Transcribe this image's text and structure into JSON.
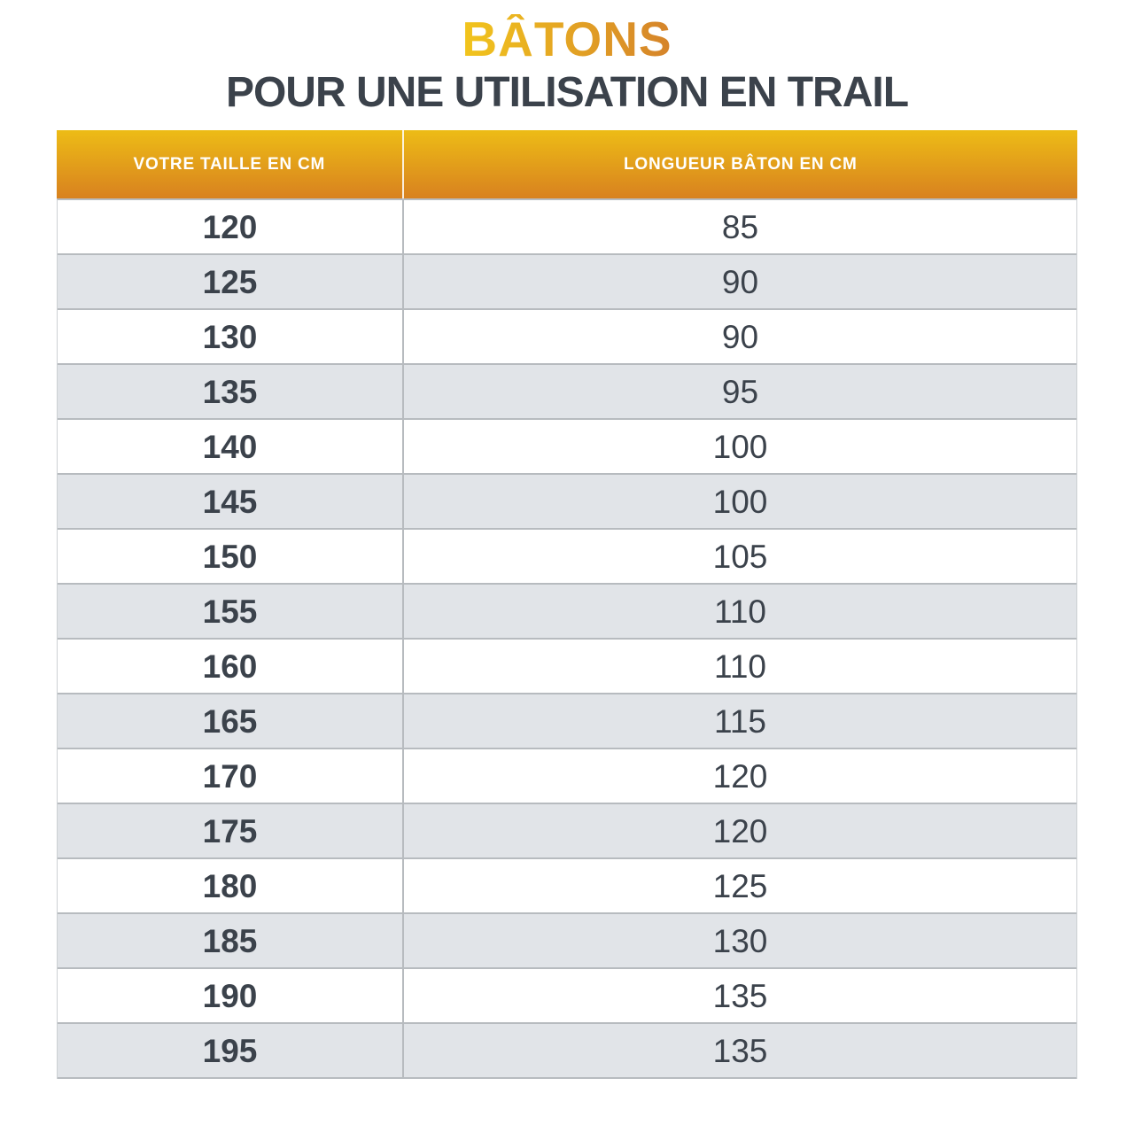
{
  "title": "BÂTONS",
  "subtitle": "POUR UNE UTILISATION EN TRAIL",
  "colors": {
    "title_gradient_start": "#f2c51d",
    "title_gradient_end": "#d5832a",
    "header_gradient_top": "#edbc16",
    "header_gradient_bottom": "#d8811f",
    "header_text": "#ffffff",
    "body_text": "#3b424b",
    "row_alt_bg": "#e1e4e8",
    "grid_line": "#b7bbbf"
  },
  "chart_data": {
    "type": "table",
    "title": "BÂTONS",
    "subtitle": "POUR UNE UTILISATION EN TRAIL",
    "columns": [
      "VOTRE TAILLE EN CM",
      "LONGUEUR BÂTON EN CM"
    ],
    "rows": [
      [
        120,
        85
      ],
      [
        125,
        90
      ],
      [
        130,
        90
      ],
      [
        135,
        95
      ],
      [
        140,
        100
      ],
      [
        145,
        100
      ],
      [
        150,
        105
      ],
      [
        155,
        110
      ],
      [
        160,
        110
      ],
      [
        165,
        115
      ],
      [
        170,
        120
      ],
      [
        175,
        120
      ],
      [
        180,
        125
      ],
      [
        185,
        130
      ],
      [
        190,
        135
      ],
      [
        195,
        135
      ]
    ],
    "layout": {
      "zebra_striping": true,
      "header_style": "gold-gradient",
      "col1_width_pct": 34,
      "col2_width_pct": 66
    }
  }
}
